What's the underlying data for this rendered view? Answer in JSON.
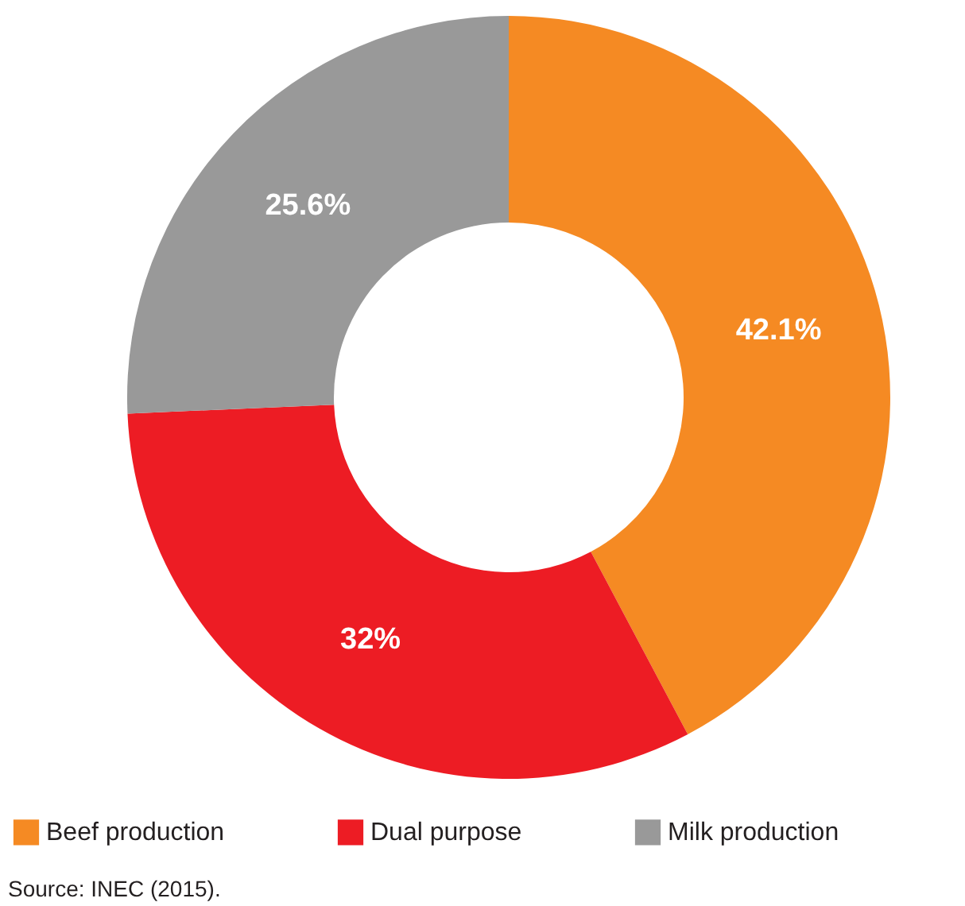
{
  "chart_data": {
    "type": "donut",
    "categories": [
      "Beef production",
      "Dual purpose",
      "Milk production"
    ],
    "values": [
      42.1,
      32,
      25.6
    ],
    "colors": [
      "#f58a23",
      "#ed1c24",
      "#999999"
    ],
    "value_labels": [
      "42.1%",
      "32%",
      "25.6%"
    ],
    "legend": "bottom",
    "annotations": [
      "Source: INEC (2015)."
    ]
  }
}
